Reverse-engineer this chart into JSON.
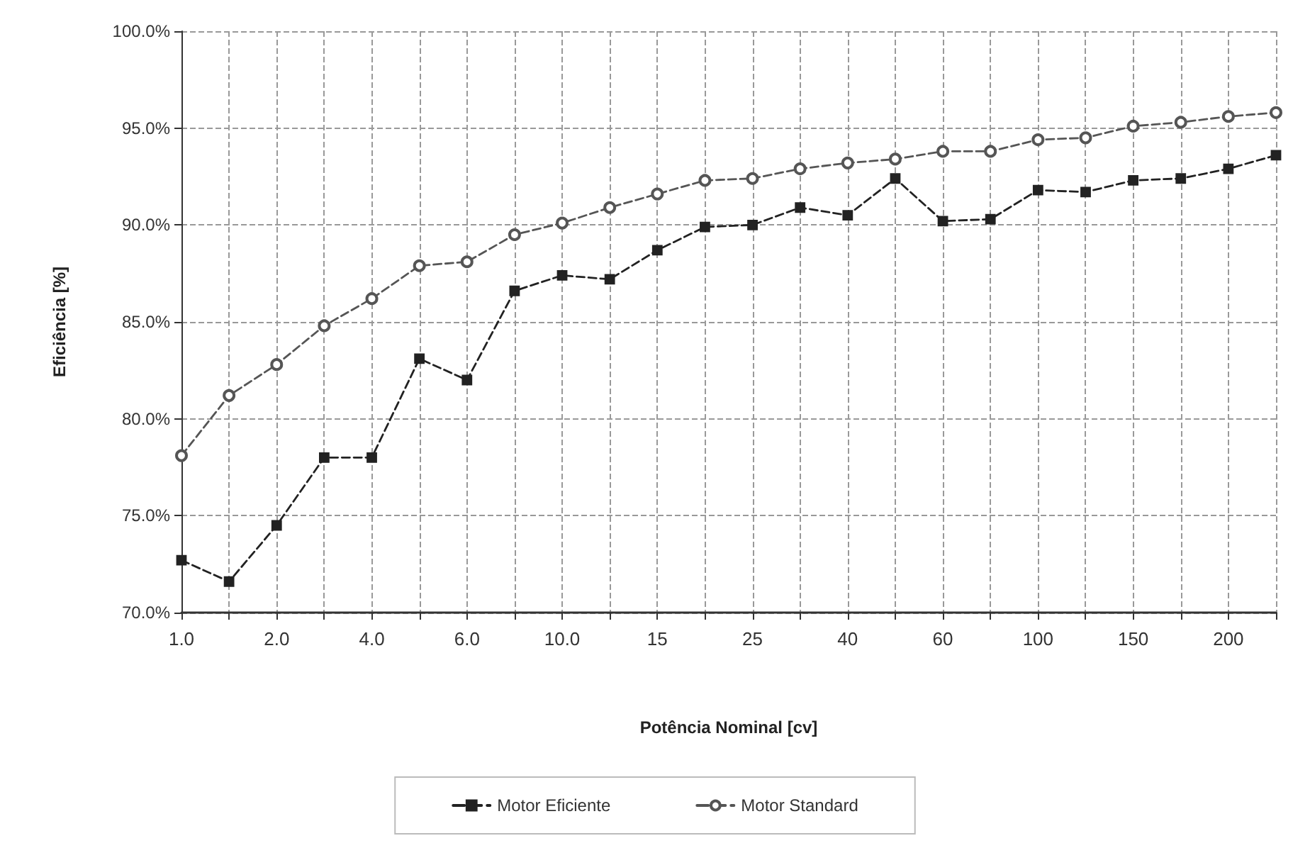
{
  "chart_data": {
    "type": "line",
    "xlabel": "Potência Nominal [cv]",
    "ylabel": "Eficiência [%]",
    "categories": [
      "1.0",
      null,
      "2.0",
      null,
      "4.0",
      null,
      "6.0",
      null,
      "10.0",
      null,
      "15",
      null,
      "25",
      null,
      "40",
      null,
      "60",
      null,
      "100",
      null,
      "150",
      null,
      "200",
      null
    ],
    "series": [
      {
        "name": "Motor Eficiente",
        "color": "#222222",
        "marker": "square",
        "values": [
          72.7,
          71.6,
          74.5,
          78.0,
          78.0,
          83.1,
          82.0,
          86.6,
          87.4,
          87.2,
          88.7,
          89.9,
          90.0,
          90.9,
          90.5,
          92.4,
          90.2,
          90.3,
          91.8,
          91.7,
          92.3,
          92.4,
          92.9,
          93.6
        ]
      },
      {
        "name": "Motor Standard",
        "color": "#555555",
        "marker": "circle",
        "values": [
          78.1,
          81.2,
          82.8,
          84.8,
          86.2,
          87.9,
          88.1,
          89.5,
          90.1,
          90.9,
          91.6,
          92.3,
          92.4,
          92.9,
          93.2,
          93.4,
          93.8,
          93.8,
          94.4,
          94.5,
          95.1,
          95.3,
          95.6,
          95.8
        ]
      }
    ],
    "ylim": [
      70,
      100
    ],
    "yticks": [
      {
        "value": 70,
        "label": "70.0%"
      },
      {
        "value": 75,
        "label": "75.0%"
      },
      {
        "value": 80,
        "label": "80.0%"
      },
      {
        "value": 85,
        "label": "85.0%"
      },
      {
        "value": 90,
        "label": "90.0%"
      },
      {
        "value": 95,
        "label": "95.0%"
      },
      {
        "value": 100,
        "label": "100.0%"
      }
    ],
    "grid": true,
    "legend": "bottom",
    "line_style": "dashed"
  }
}
